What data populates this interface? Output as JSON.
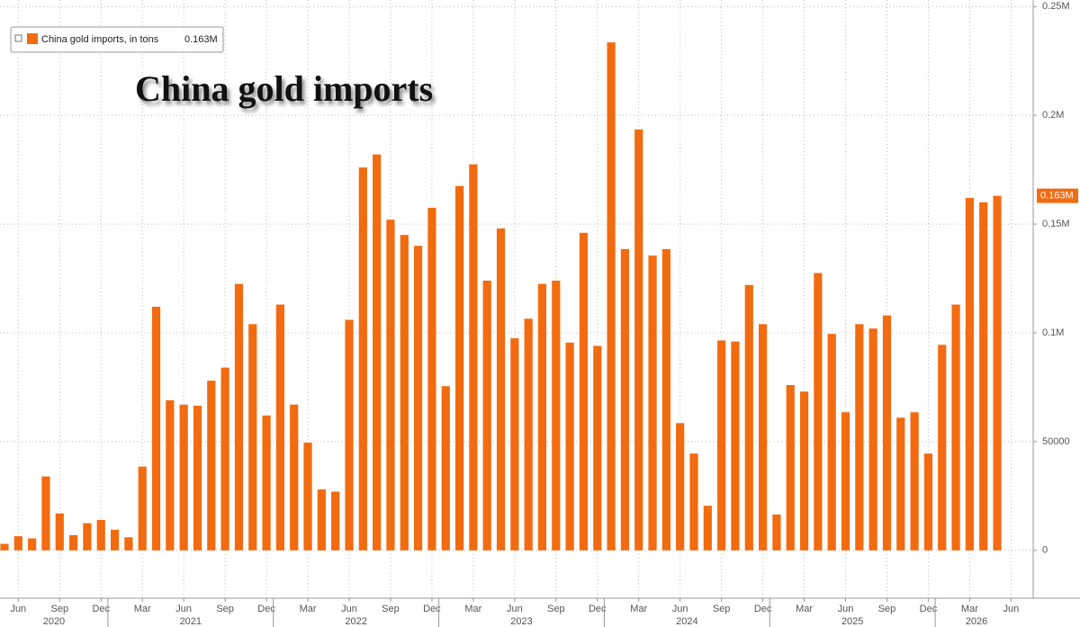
{
  "chart_data": {
    "type": "bar",
    "annotation": "China gold imports",
    "categories": [
      null,
      "Jun",
      null,
      null,
      "Sep",
      null,
      null,
      "Dec",
      null,
      null,
      "Mar",
      null,
      null,
      "Jun",
      null,
      null,
      "Sep",
      null,
      null,
      "Dec",
      null,
      null,
      "Mar",
      null,
      null,
      "Jun",
      null,
      null,
      "Sep",
      null,
      null,
      "Dec",
      null,
      null,
      "Mar",
      null,
      null,
      "Jun",
      null,
      null,
      "Sep",
      null,
      null,
      "Dec",
      null,
      null,
      "Mar",
      null,
      null,
      "Jun",
      null,
      null,
      "Sep",
      null,
      null,
      "Dec",
      null,
      null,
      "Mar",
      null,
      null,
      "Jun",
      null,
      null,
      "Sep",
      null,
      null,
      "Dec",
      null,
      null,
      "Mar",
      null,
      null,
      "Jun"
    ],
    "years": [
      "2020",
      "2021",
      "2022",
      "2023",
      "2024",
      "2025",
      "2026"
    ],
    "series": [
      {
        "name": "China gold imports, in tons",
        "color": "#f26b10",
        "values": [
          3000,
          6500,
          5500,
          34000,
          17000,
          7000,
          12500,
          14000,
          9500,
          6000,
          38500,
          112000,
          69000,
          67000,
          66500,
          78000,
          84000,
          122500,
          104000,
          62000,
          113000,
          67000,
          49500,
          28000,
          27000,
          106000,
          176000,
          182000,
          152000,
          145000,
          140000,
          157500,
          75500,
          167500,
          177500,
          124000,
          148000,
          97500,
          106500,
          122500,
          124000,
          95500,
          146000,
          94000,
          233500,
          138500,
          193500,
          135500,
          138500,
          58500,
          44500,
          20500,
          96500,
          96000,
          122000,
          104000,
          16500,
          76000,
          73000,
          127500,
          99500,
          63500,
          104000,
          102000,
          108000,
          61000,
          63500,
          44500,
          94500,
          113000,
          162000,
          160000,
          163000,
          null
        ],
        "value_labels": [
          null,
          null,
          null,
          null,
          null,
          null,
          null,
          null,
          null,
          null,
          null,
          null,
          null,
          null,
          null,
          null,
          null,
          null,
          null,
          null,
          null,
          null,
          null,
          null,
          null,
          null,
          null,
          null,
          null,
          null,
          null,
          null,
          null,
          null,
          null,
          null,
          null,
          null,
          null,
          null,
          null,
          null,
          null,
          null,
          null,
          null,
          null,
          null,
          null,
          null,
          null,
          null,
          null,
          null,
          null,
          null,
          null,
          null,
          null,
          null,
          null,
          null,
          null,
          null,
          null,
          null,
          null,
          null,
          null,
          null,
          null,
          null,
          "0.163M",
          null
        ]
      }
    ],
    "ylim": [
      -22000,
      253000
    ],
    "yticks": [
      0,
      50000,
      {
        "value": 100000,
        "label": "0.1M"
      },
      {
        "value": 150000,
        "label": "0.15M"
      },
      {
        "value": 200000,
        "label": "0.2M"
      },
      {
        "value": 250000,
        "label": "0.25M"
      }
    ],
    "grid": true,
    "legend": "top-left"
  }
}
